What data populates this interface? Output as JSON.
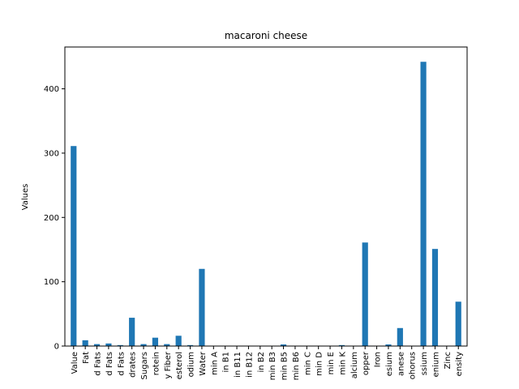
{
  "chart_data": {
    "type": "bar",
    "title": "macaroni cheese",
    "xlabel": "",
    "ylabel": "Values",
    "ylim": [
      0,
      465
    ],
    "yticks": [
      0,
      100,
      200,
      300,
      400
    ],
    "grid": false,
    "legend": "none",
    "bar_color": "#1f77b4",
    "categories": [
      "Value",
      "Fat",
      "d Fats",
      "d Fats",
      "d Fats",
      "drates",
      "Sugars",
      "rotein",
      "y Fiber",
      "esterol",
      "odium",
      "Water",
      "min A",
      "in B1",
      "in B11",
      "in B12",
      "in B2",
      "min B3",
      "min B5",
      "min B6",
      "min C",
      "min D",
      "min E",
      "min K",
      "alcium",
      "opper",
      "Iron",
      "esium",
      "anese",
      "ohorus",
      "ssium",
      "enium",
      "Zinc",
      "ensity"
    ],
    "values": [
      311,
      9,
      3,
      4,
      1.5,
      44,
      3,
      13,
      3,
      16,
      1.5,
      120,
      0.5,
      0.5,
      0.5,
      0.5,
      0.5,
      0.5,
      2.5,
      0.5,
      0.5,
      0.5,
      0.5,
      1.5,
      0.5,
      161,
      0.5,
      2.5,
      28,
      0.5,
      442,
      151,
      0.5,
      69
    ]
  }
}
